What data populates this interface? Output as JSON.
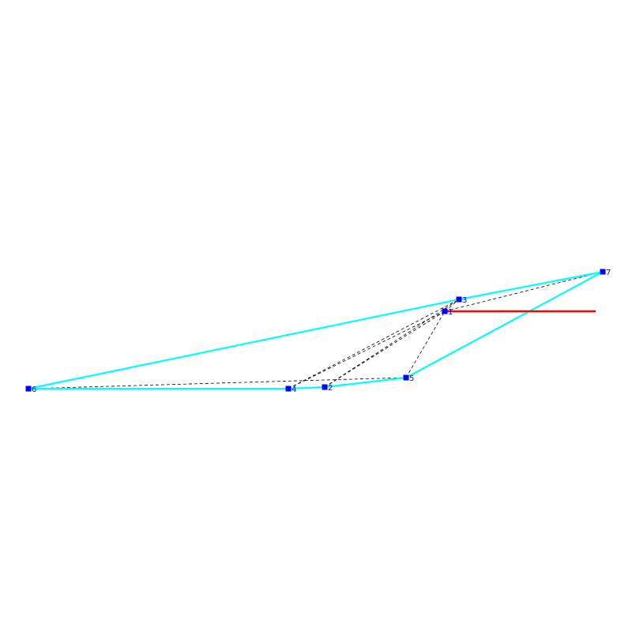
{
  "diagram": {
    "colors": {
      "background": "#ffffff",
      "hull": "#00ffff",
      "ray": "#ff0000",
      "triangulation": "#000000",
      "vertex": "#0000ff",
      "label": "#0000cc"
    },
    "vertices": [
      {
        "id": "1",
        "label": "1"
      },
      {
        "id": "2",
        "label": "2"
      },
      {
        "id": "3",
        "label": "3"
      },
      {
        "id": "4",
        "label": "4"
      },
      {
        "id": "5",
        "label": "5"
      },
      {
        "id": "6",
        "label": "6"
      },
      {
        "id": "7",
        "label": "7"
      }
    ],
    "hull_order": [
      "6",
      "4",
      "2",
      "5",
      "7",
      "3",
      "6"
    ],
    "ray": {
      "from": "1",
      "direction": "right"
    },
    "triangulation_edges": [
      [
        "6",
        "3"
      ],
      [
        "6",
        "5"
      ],
      [
        "6",
        "4"
      ],
      [
        "4",
        "3"
      ],
      [
        "4",
        "1"
      ],
      [
        "2",
        "1"
      ],
      [
        "2",
        "3"
      ],
      [
        "5",
        "1"
      ],
      [
        "1",
        "3"
      ],
      [
        "3",
        "7"
      ],
      [
        "1",
        "7"
      ]
    ]
  }
}
